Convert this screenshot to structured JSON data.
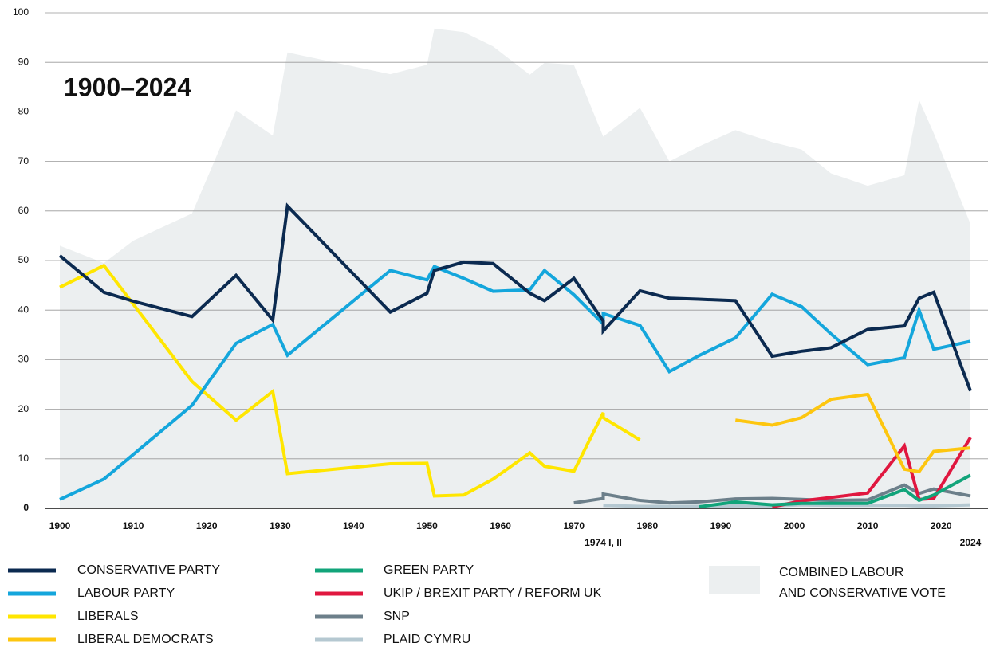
{
  "chart_data": {
    "type": "line",
    "title": "1900–2024",
    "xlim": [
      1900,
      2024
    ],
    "ylim": [
      0,
      100
    ],
    "xticks": [
      1900,
      1910,
      1920,
      1930,
      1940,
      1950,
      1960,
      1970,
      1980,
      1990,
      2000,
      2010,
      2020,
      {
        "value": 1974,
        "label": "1974 I, II"
      },
      2024
    ],
    "yticks": [
      0,
      10,
      20,
      30,
      40,
      50,
      60,
      70,
      80,
      90,
      100
    ],
    "grid": true,
    "area": {
      "name": [
        "COMBINED LABOUR",
        "AND CONSERVATIVE VOTE"
      ],
      "color": "#eceff0",
      "x": [
        1900,
        1906,
        1910,
        1918,
        1924,
        1929,
        1931,
        1945,
        1950,
        1951,
        1955,
        1959,
        1964,
        1966,
        1970,
        1974,
        1979,
        1983,
        1987,
        1992,
        1997,
        2001,
        2005,
        2010,
        2015,
        2017,
        2019,
        2024
      ],
      "values": [
        53,
        49.5,
        54,
        59.5,
        80.3,
        75.2,
        92,
        87.6,
        89.5,
        96.8,
        96.1,
        93.2,
        87.5,
        89.9,
        89.5,
        75,
        80.8,
        70,
        73,
        76.3,
        73.9,
        72.4,
        67.6,
        65.1,
        67.2,
        82.4,
        75.7,
        57.4
      ]
    },
    "series": [
      {
        "name": "CONSERVATIVE PARTY",
        "color": "#0b2a50",
        "x": [
          1900,
          1906,
          1910,
          1918,
          1924,
          1929,
          1931,
          1945,
          1950,
          1951,
          1955,
          1959,
          1964,
          1966,
          1970,
          1974,
          1974,
          1979,
          1983,
          1987,
          1992,
          1997,
          2001,
          2005,
          2010,
          2015,
          2017,
          2019,
          2024
        ],
        "values": [
          51,
          43.6,
          41.8,
          38.7,
          47,
          38,
          61,
          39.6,
          43.4,
          48,
          49.7,
          49.4,
          43.4,
          41.9,
          46.4,
          37.8,
          35.8,
          43.9,
          42.4,
          42.2,
          41.9,
          30.7,
          31.7,
          32.4,
          36.1,
          36.8,
          42.4,
          43.6,
          23.7
        ]
      },
      {
        "name": "LABOUR PARTY",
        "color": "#14a6dc",
        "x": [
          1900,
          1906,
          1918,
          1924,
          1929,
          1931,
          1945,
          1950,
          1951,
          1955,
          1959,
          1964,
          1966,
          1970,
          1974,
          1974,
          1979,
          1983,
          1987,
          1992,
          1997,
          2001,
          2005,
          2010,
          2015,
          2017,
          2019,
          2024
        ],
        "values": [
          1.8,
          5.9,
          20.8,
          33.3,
          37.1,
          30.9,
          48,
          46.1,
          48.8,
          46.4,
          43.8,
          44.1,
          48,
          43.1,
          37.2,
          39.3,
          36.9,
          27.6,
          30.8,
          34.4,
          43.2,
          40.7,
          35.2,
          29,
          30.4,
          40,
          32.1,
          33.7
        ]
      },
      {
        "name": "LIBERALS",
        "color": "#ffe600",
        "x": [
          1900,
          1906,
          1918,
          1924,
          1929,
          1931,
          1945,
          1950,
          1951,
          1955,
          1959,
          1964,
          1966,
          1970,
          1974,
          1974,
          1979
        ],
        "values": [
          44.6,
          49,
          25.6,
          17.8,
          23.6,
          7,
          9,
          9.1,
          2.5,
          2.7,
          5.9,
          11.2,
          8.5,
          7.5,
          19.3,
          18.3,
          13.8
        ]
      },
      {
        "name": "LIBERAL DEMOCRATS",
        "color": "#fdc60f",
        "x": [
          1992,
          1997,
          2001,
          2005,
          2010,
          2015,
          2017,
          2019,
          2024
        ],
        "values": [
          17.8,
          16.8,
          18.3,
          22,
          23,
          7.9,
          7.4,
          11.5,
          12.2
        ]
      },
      {
        "name": "GREEN PARTY",
        "color": "#12a47a",
        "x": [
          1987,
          1992,
          1997,
          2001,
          2005,
          2010,
          2015,
          2017,
          2019,
          2024
        ],
        "values": [
          0.3,
          1.3,
          0.7,
          1,
          1,
          1,
          3.8,
          1.6,
          2.7,
          6.7
        ]
      },
      {
        "name": "UKIP / BREXIT PARTY / REFORM UK",
        "color": "#e0173f",
        "x": [
          1997,
          2001,
          2005,
          2010,
          2015,
          2017,
          2019,
          2024
        ],
        "values": [
          0.3,
          1.5,
          2.2,
          3.1,
          12.6,
          1.8,
          2,
          14.3
        ]
      },
      {
        "name": "SNP",
        "color": "#6c7f8a",
        "x": [
          1970,
          1974,
          1974,
          1979,
          1983,
          1987,
          1992,
          1997,
          2001,
          2005,
          2010,
          2015,
          2017,
          2019,
          2024
        ],
        "values": [
          1.1,
          2,
          2.9,
          1.6,
          1.1,
          1.3,
          1.9,
          2,
          1.8,
          1.6,
          1.7,
          4.7,
          3,
          3.9,
          2.5
        ]
      },
      {
        "name": "PLAID CYMRU",
        "color": "#b5c8d1",
        "x": [
          1974,
          1979,
          1983,
          1987,
          1992,
          1997,
          2001,
          2005,
          2010,
          2015,
          2017,
          2019,
          2024
        ],
        "values": [
          0.6,
          0.4,
          0.4,
          0.4,
          0.5,
          0.5,
          0.7,
          0.6,
          0.6,
          0.6,
          0.5,
          0.5,
          0.7
        ]
      }
    ]
  }
}
